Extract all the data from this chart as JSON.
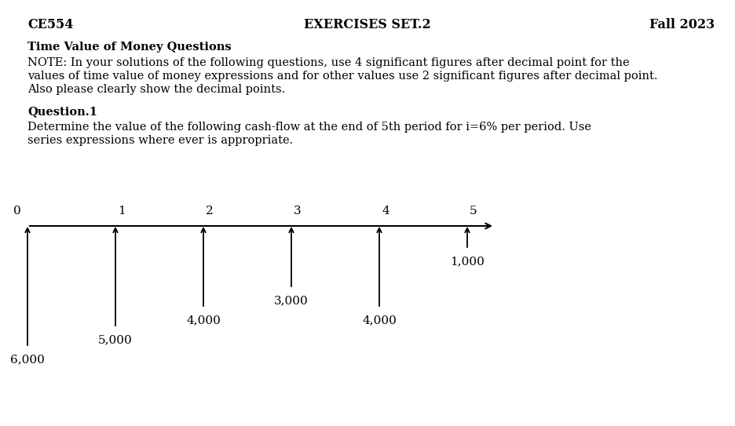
{
  "header_left": "CE554",
  "header_center": "EXERCISES SET.2",
  "header_right": "Fall 2023",
  "title_bold": "Time Value of Money Questions",
  "note_line1": "NOTE: In your solutions of the following questions, use 4 significant figures after decimal point for the",
  "note_line2": "values of time value of money expressions and for other values use 2 significant figures after decimal point.",
  "note_line3": "Also please clearly show the decimal points.",
  "question_label": "Question.1",
  "question_line1": "Determine the value of the following cash-flow at the end of 5th period for i=6% per period. Use",
  "question_line2": "series expressions where ever is appropriate.",
  "periods": [
    0,
    1,
    2,
    3,
    4,
    5
  ],
  "cash_flows": [
    6000,
    5000,
    4000,
    3000,
    4000,
    1000
  ],
  "cash_flow_labels": [
    "6,000",
    "5,000",
    "4,000",
    "3,000",
    "4,000",
    "1,000"
  ],
  "background_color": "#ffffff",
  "text_color": "#000000",
  "header_fontsize": 11.5,
  "body_fontsize": 10.5,
  "diagram_fontsize": 11
}
